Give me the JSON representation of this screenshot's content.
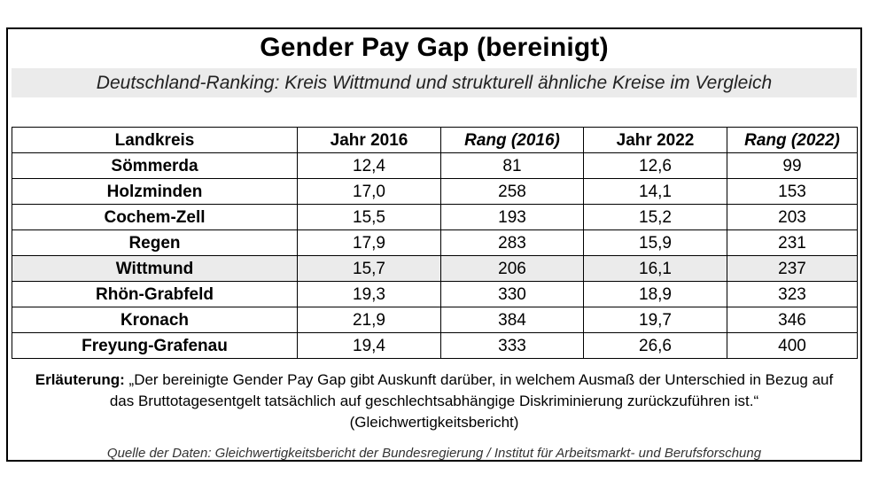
{
  "title": "Gender Pay Gap (bereinigt)",
  "subtitle": "Deutschland-Ranking: Kreis Wittmund und strukturell ähnliche Kreise im Vergleich",
  "table": {
    "headers": [
      "Landkreis",
      "Jahr 2016",
      "Rang (2016)",
      "Jahr 2022",
      "Rang (2022)"
    ],
    "rows": [
      [
        "Sömmerda",
        "12,4",
        "81",
        "12,6",
        "99"
      ],
      [
        "Holzminden",
        "17,0",
        "258",
        "14,1",
        "153"
      ],
      [
        "Cochem-Zell",
        "15,5",
        "193",
        "15,2",
        "203"
      ],
      [
        "Regen",
        "17,9",
        "283",
        "15,9",
        "231"
      ],
      [
        "Wittmund",
        "15,7",
        "206",
        "16,1",
        "237"
      ],
      [
        "Rhön-Grabfeld",
        "19,3",
        "330",
        "18,9",
        "323"
      ],
      [
        "Kronach",
        "21,9",
        "384",
        "19,7",
        "346"
      ],
      [
        "Freyung-Grafenau",
        "19,4",
        "333",
        "26,6",
        "400"
      ]
    ],
    "highlight_row": "Wittmund",
    "highlight_color": "#ebebeb"
  },
  "note": {
    "label": "Erläuterung:",
    "line1": "„Der bereinigte Gender Pay Gap gibt Auskunft darüber, in welchem Ausmaß der Unterschied in Bezug auf",
    "line2": "das Bruttotagesentgelt tatsächlich auf geschlechtsabhängige Diskriminierung zurückzuführen ist.“",
    "line3": "(Gleichwertigkeitsbericht)"
  },
  "source": "Quelle der Daten: Gleichwertigkeitsbericht der Bundesregierung / Institut für Arbeitsmarkt- und Berufsforschung"
}
